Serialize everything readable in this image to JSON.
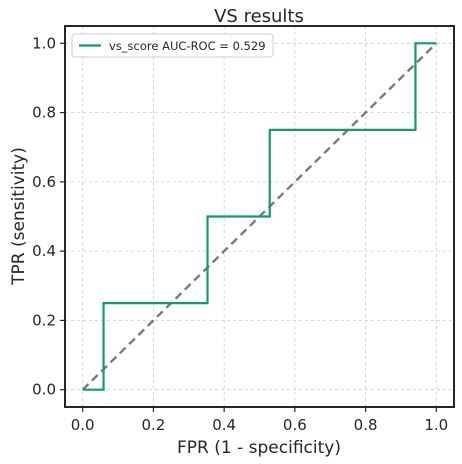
{
  "chart_data": {
    "type": "line",
    "title": "VS results",
    "xlabel": "FPR (1 - specificity)",
    "ylabel": "TPR (sensitivity)",
    "xlim": [
      -0.05,
      1.05
    ],
    "ylim": [
      -0.05,
      1.05
    ],
    "xticks": [
      0.0,
      0.2,
      0.4,
      0.6,
      0.8,
      1.0
    ],
    "yticks": [
      0.0,
      0.2,
      0.4,
      0.6,
      0.8,
      1.0
    ],
    "xtick_labels": [
      "0.0",
      "0.2",
      "0.4",
      "0.6",
      "0.8",
      "1.0"
    ],
    "ytick_labels": [
      "0.0",
      "0.2",
      "0.4",
      "0.6",
      "0.8",
      "1.0"
    ],
    "grid": true,
    "legend_position": "top-left",
    "series": [
      {
        "name": "vs_score AUC-ROC = 0.529",
        "color": "#129a72",
        "style": "solid",
        "x": [
          0.0,
          0.059,
          0.059,
          0.353,
          0.353,
          0.529,
          0.529,
          0.941,
          0.941,
          1.0
        ],
        "y": [
          0.0,
          0.0,
          0.25,
          0.25,
          0.5,
          0.5,
          0.75,
          0.75,
          1.0,
          1.0
        ]
      },
      {
        "color": "#7a7a7a",
        "style": "dashed",
        "x": [
          0.0,
          1.0
        ],
        "y": [
          0.0,
          1.0
        ]
      }
    ]
  }
}
